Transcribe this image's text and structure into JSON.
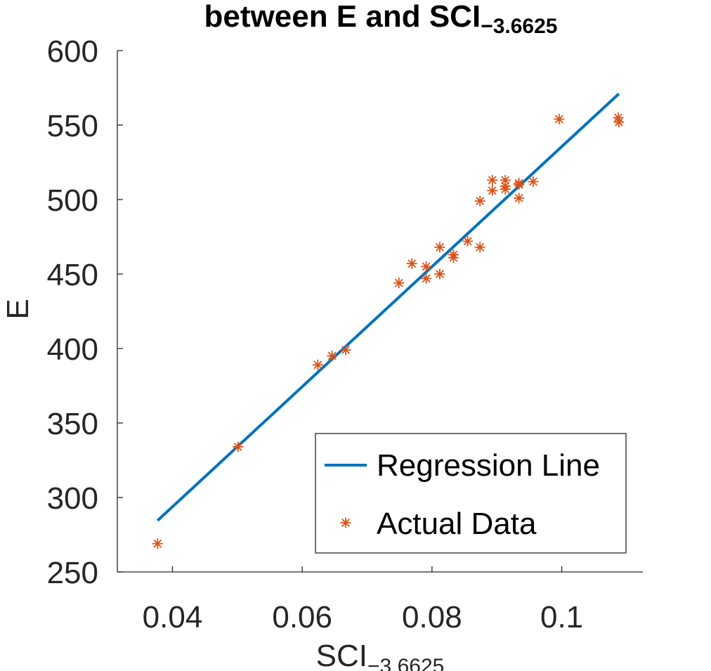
{
  "chart_data": {
    "type": "scatter",
    "title": {
      "main": "between E and SCI",
      "sub": "−3.6625"
    },
    "xlabel": {
      "main": "SCI",
      "sub": "−3.6625"
    },
    "ylabel": "E",
    "xlim": [
      0.0315,
      0.1125
    ],
    "ylim": [
      250,
      600
    ],
    "xticks": [
      0.04,
      0.06,
      0.08,
      0.1
    ],
    "xtick_labels": [
      "0.04",
      "0.06",
      "0.08",
      "0.1"
    ],
    "yticks": [
      250,
      300,
      350,
      400,
      450,
      500,
      550,
      600
    ],
    "ytick_labels": [
      "250",
      "300",
      "350",
      "400",
      "450",
      "500",
      "550",
      "600"
    ],
    "grid": false,
    "legend_position": "bottom-right",
    "series": [
      {
        "name": "Regression Line",
        "kind": "line",
        "color": "#0072BD",
        "x": [
          0.0377,
          0.1088
        ],
        "y": [
          284.5,
          571
        ]
      },
      {
        "name": "Actual Data",
        "kind": "scatter",
        "marker": "asterisk",
        "color": "#D95319",
        "x": [
          0.0377,
          0.0501,
          0.0624,
          0.0646,
          0.0667,
          0.0749,
          0.0769,
          0.0791,
          0.0791,
          0.0812,
          0.0812,
          0.0833,
          0.0833,
          0.0855,
          0.0874,
          0.0874,
          0.0893,
          0.0893,
          0.0913,
          0.0913,
          0.0913,
          0.0934,
          0.0934,
          0.0934,
          0.0956,
          0.0996,
          0.1087,
          0.1088
        ],
        "y": [
          269,
          334,
          389,
          395,
          399,
          444,
          457,
          455,
          447,
          468,
          450,
          463,
          461,
          472,
          499,
          468,
          513,
          506,
          513,
          509,
          507,
          511,
          510,
          501,
          512,
          554,
          555,
          552
        ]
      }
    ]
  }
}
